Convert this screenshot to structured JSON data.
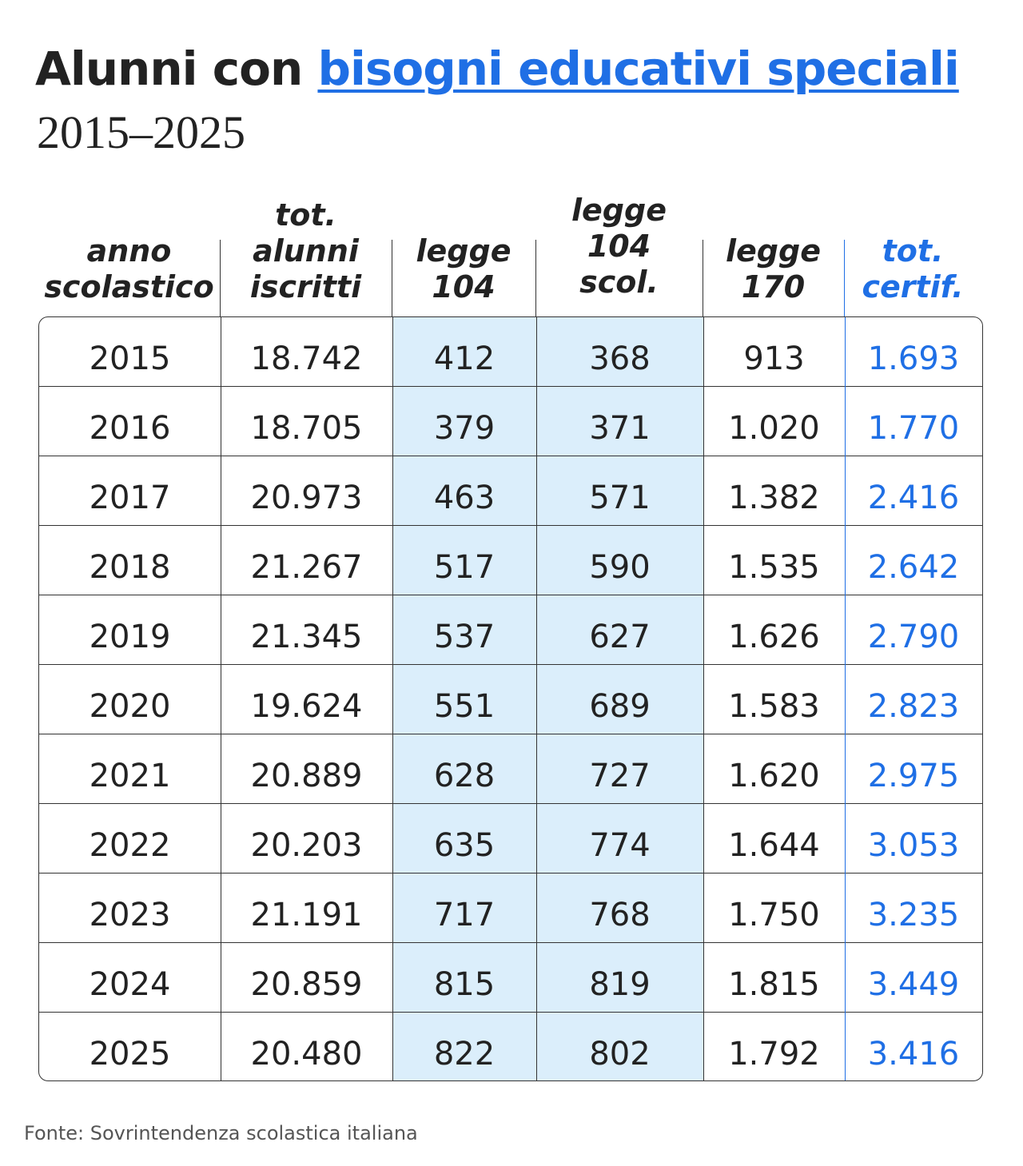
{
  "title": {
    "prefix": "Alunni con",
    "highlight": "bisogni educativi speciali"
  },
  "subtitle": "2015–2025",
  "source": "Fonte: Sovrintendenza scolastica italiana",
  "colors": {
    "text": "#222222",
    "accent_blue": "#1f6fe5",
    "shaded_columns": "#dbeefb",
    "grid_lines": "#333333"
  },
  "chart_data": {
    "type": "table",
    "columns": [
      [
        "anno",
        "scolastico"
      ],
      [
        "tot.",
        "alunni",
        "iscritti"
      ],
      [
        "legge",
        "104"
      ],
      [
        "legge",
        "104",
        "scol."
      ],
      [
        "legge",
        "170"
      ],
      [
        "tot.",
        "certif."
      ]
    ],
    "highlighted_columns": [
      2,
      3
    ],
    "accent_column": 5,
    "rows": [
      [
        "2015",
        "18.742",
        "412",
        "368",
        "913",
        "1.693"
      ],
      [
        "2016",
        "18.705",
        "379",
        "371",
        "1.020",
        "1.770"
      ],
      [
        "2017",
        "20.973",
        "463",
        "571",
        "1.382",
        "2.416"
      ],
      [
        "2018",
        "21.267",
        "517",
        "590",
        "1.535",
        "2.642"
      ],
      [
        "2019",
        "21.345",
        "537",
        "627",
        "1.626",
        "2.790"
      ],
      [
        "2020",
        "19.624",
        "551",
        "689",
        "1.583",
        "2.823"
      ],
      [
        "2021",
        "20.889",
        "628",
        "727",
        "1.620",
        "2.975"
      ],
      [
        "2022",
        "20.203",
        "635",
        "774",
        "1.644",
        "3.053"
      ],
      [
        "2023",
        "21.191",
        "717",
        "768",
        "1.750",
        "3.235"
      ],
      [
        "2024",
        "20.859",
        "815",
        "819",
        "1.815",
        "3.449"
      ],
      [
        "2025",
        "20.480",
        "822",
        "802",
        "1.792",
        "3.416"
      ]
    ]
  }
}
